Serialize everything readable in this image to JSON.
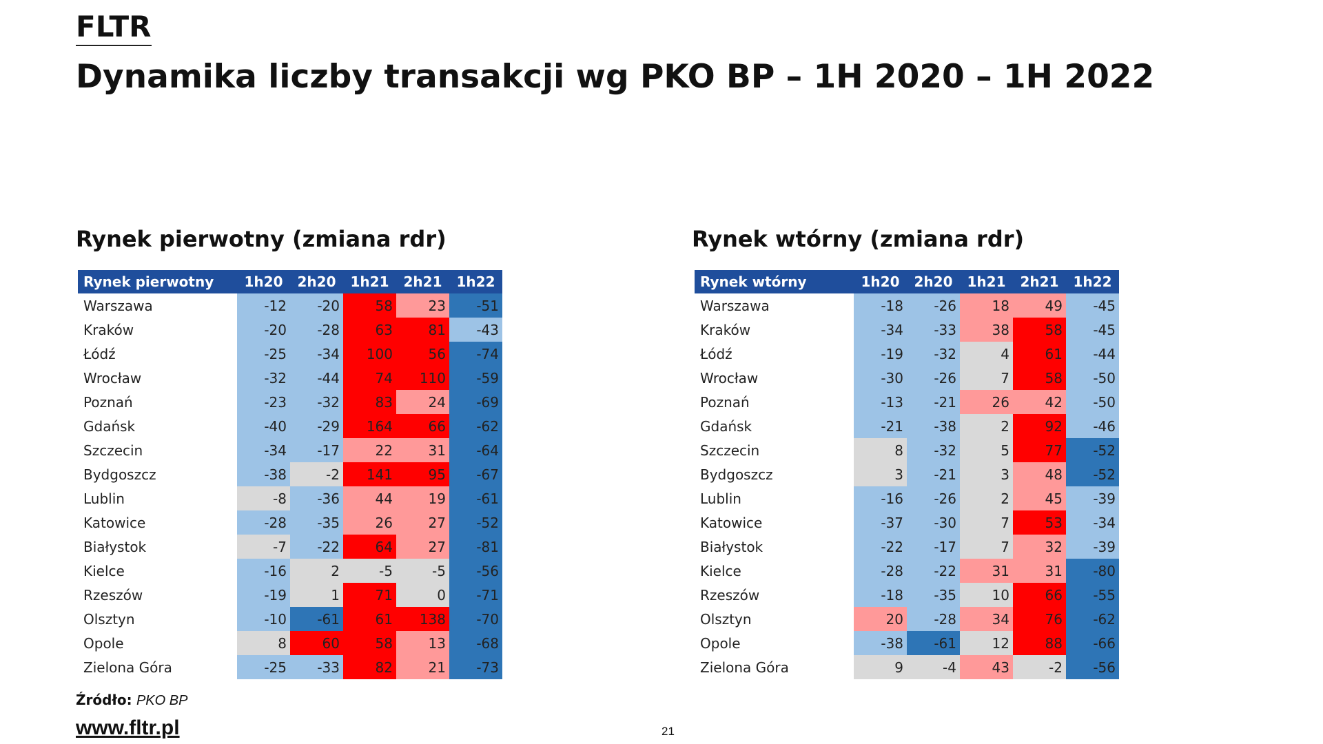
{
  "header": {
    "brand": "FLTR",
    "title": "Dynamika liczby transakcji wg PKO BP – 1H 2020 – 1H 2022"
  },
  "tables": [
    {
      "title": "Rynek pierwotny (zmiana rdr)",
      "columns": [
        "Rynek pierwotny",
        "1h20",
        "2h20",
        "1h21",
        "2h21",
        "1h22"
      ],
      "rows": [
        {
          "label": "Warszawa",
          "values": [
            -12,
            -20,
            58,
            23,
            -51
          ]
        },
        {
          "label": "Kraków",
          "values": [
            -20,
            -28,
            63,
            81,
            -43
          ]
        },
        {
          "label": "Łódź",
          "values": [
            -25,
            -34,
            100,
            56,
            -74
          ]
        },
        {
          "label": "Wrocław",
          "values": [
            -32,
            -44,
            74,
            110,
            -59
          ]
        },
        {
          "label": "Poznań",
          "values": [
            -23,
            -32,
            83,
            24,
            -69
          ]
        },
        {
          "label": "Gdańsk",
          "values": [
            -40,
            -29,
            164,
            66,
            -62
          ]
        },
        {
          "label": "Szczecin",
          "values": [
            -34,
            -17,
            22,
            31,
            -64
          ]
        },
        {
          "label": "Bydgoszcz",
          "values": [
            -38,
            -2,
            141,
            95,
            -67
          ]
        },
        {
          "label": "Lublin",
          "values": [
            -8,
            -36,
            44,
            19,
            -61
          ]
        },
        {
          "label": "Katowice",
          "values": [
            -28,
            -35,
            26,
            27,
            -52
          ]
        },
        {
          "label": "Białystok",
          "values": [
            -7,
            -22,
            64,
            27,
            -81
          ]
        },
        {
          "label": "Kielce",
          "values": [
            -16,
            2,
            -5,
            -5,
            -56
          ]
        },
        {
          "label": "Rzeszów",
          "values": [
            -19,
            1,
            71,
            0,
            -71
          ]
        },
        {
          "label": "Olsztyn",
          "values": [
            -10,
            -61,
            61,
            138,
            -70
          ]
        },
        {
          "label": "Opole",
          "values": [
            8,
            60,
            58,
            13,
            -68
          ]
        },
        {
          "label": "Zielona Góra",
          "values": [
            -25,
            -33,
            82,
            21,
            -73
          ]
        }
      ]
    },
    {
      "title": "Rynek wtórny (zmiana rdr)",
      "columns": [
        "Rynek wtórny",
        "1h20",
        "2h20",
        "1h21",
        "2h21",
        "1h22"
      ],
      "rows": [
        {
          "label": "Warszawa",
          "values": [
            -18,
            -26,
            18,
            49,
            -45
          ]
        },
        {
          "label": "Kraków",
          "values": [
            -34,
            -33,
            38,
            58,
            -45
          ]
        },
        {
          "label": "Łódź",
          "values": [
            -19,
            -32,
            4,
            61,
            -44
          ]
        },
        {
          "label": "Wrocław",
          "values": [
            -30,
            -26,
            7,
            58,
            -50
          ]
        },
        {
          "label": "Poznań",
          "values": [
            -13,
            -21,
            26,
            42,
            -50
          ]
        },
        {
          "label": "Gdańsk",
          "values": [
            -21,
            -38,
            2,
            92,
            -46
          ]
        },
        {
          "label": "Szczecin",
          "values": [
            8,
            -32,
            5,
            77,
            -52
          ]
        },
        {
          "label": "Bydgoszcz",
          "values": [
            3,
            -21,
            3,
            48,
            -52
          ]
        },
        {
          "label": "Lublin",
          "values": [
            -16,
            -26,
            2,
            45,
            -39
          ]
        },
        {
          "label": "Katowice",
          "values": [
            -37,
            -30,
            7,
            53,
            -34
          ]
        },
        {
          "label": "Białystok",
          "values": [
            -22,
            -17,
            7,
            32,
            -39
          ]
        },
        {
          "label": "Kielce",
          "values": [
            -28,
            -22,
            31,
            31,
            -80
          ]
        },
        {
          "label": "Rzeszów",
          "values": [
            -18,
            -35,
            10,
            66,
            -55
          ]
        },
        {
          "label": "Olsztyn",
          "values": [
            20,
            -28,
            34,
            76,
            -62
          ]
        },
        {
          "label": "Opole",
          "values": [
            -38,
            -61,
            12,
            88,
            -66
          ]
        },
        {
          "label": "Zielona Góra",
          "values": [
            9,
            -4,
            43,
            -2,
            -56
          ]
        }
      ]
    }
  ],
  "footer": {
    "source_label": "Źródło:",
    "source": "PKO BP",
    "url": "www.fltr.pl",
    "page": "21"
  }
}
